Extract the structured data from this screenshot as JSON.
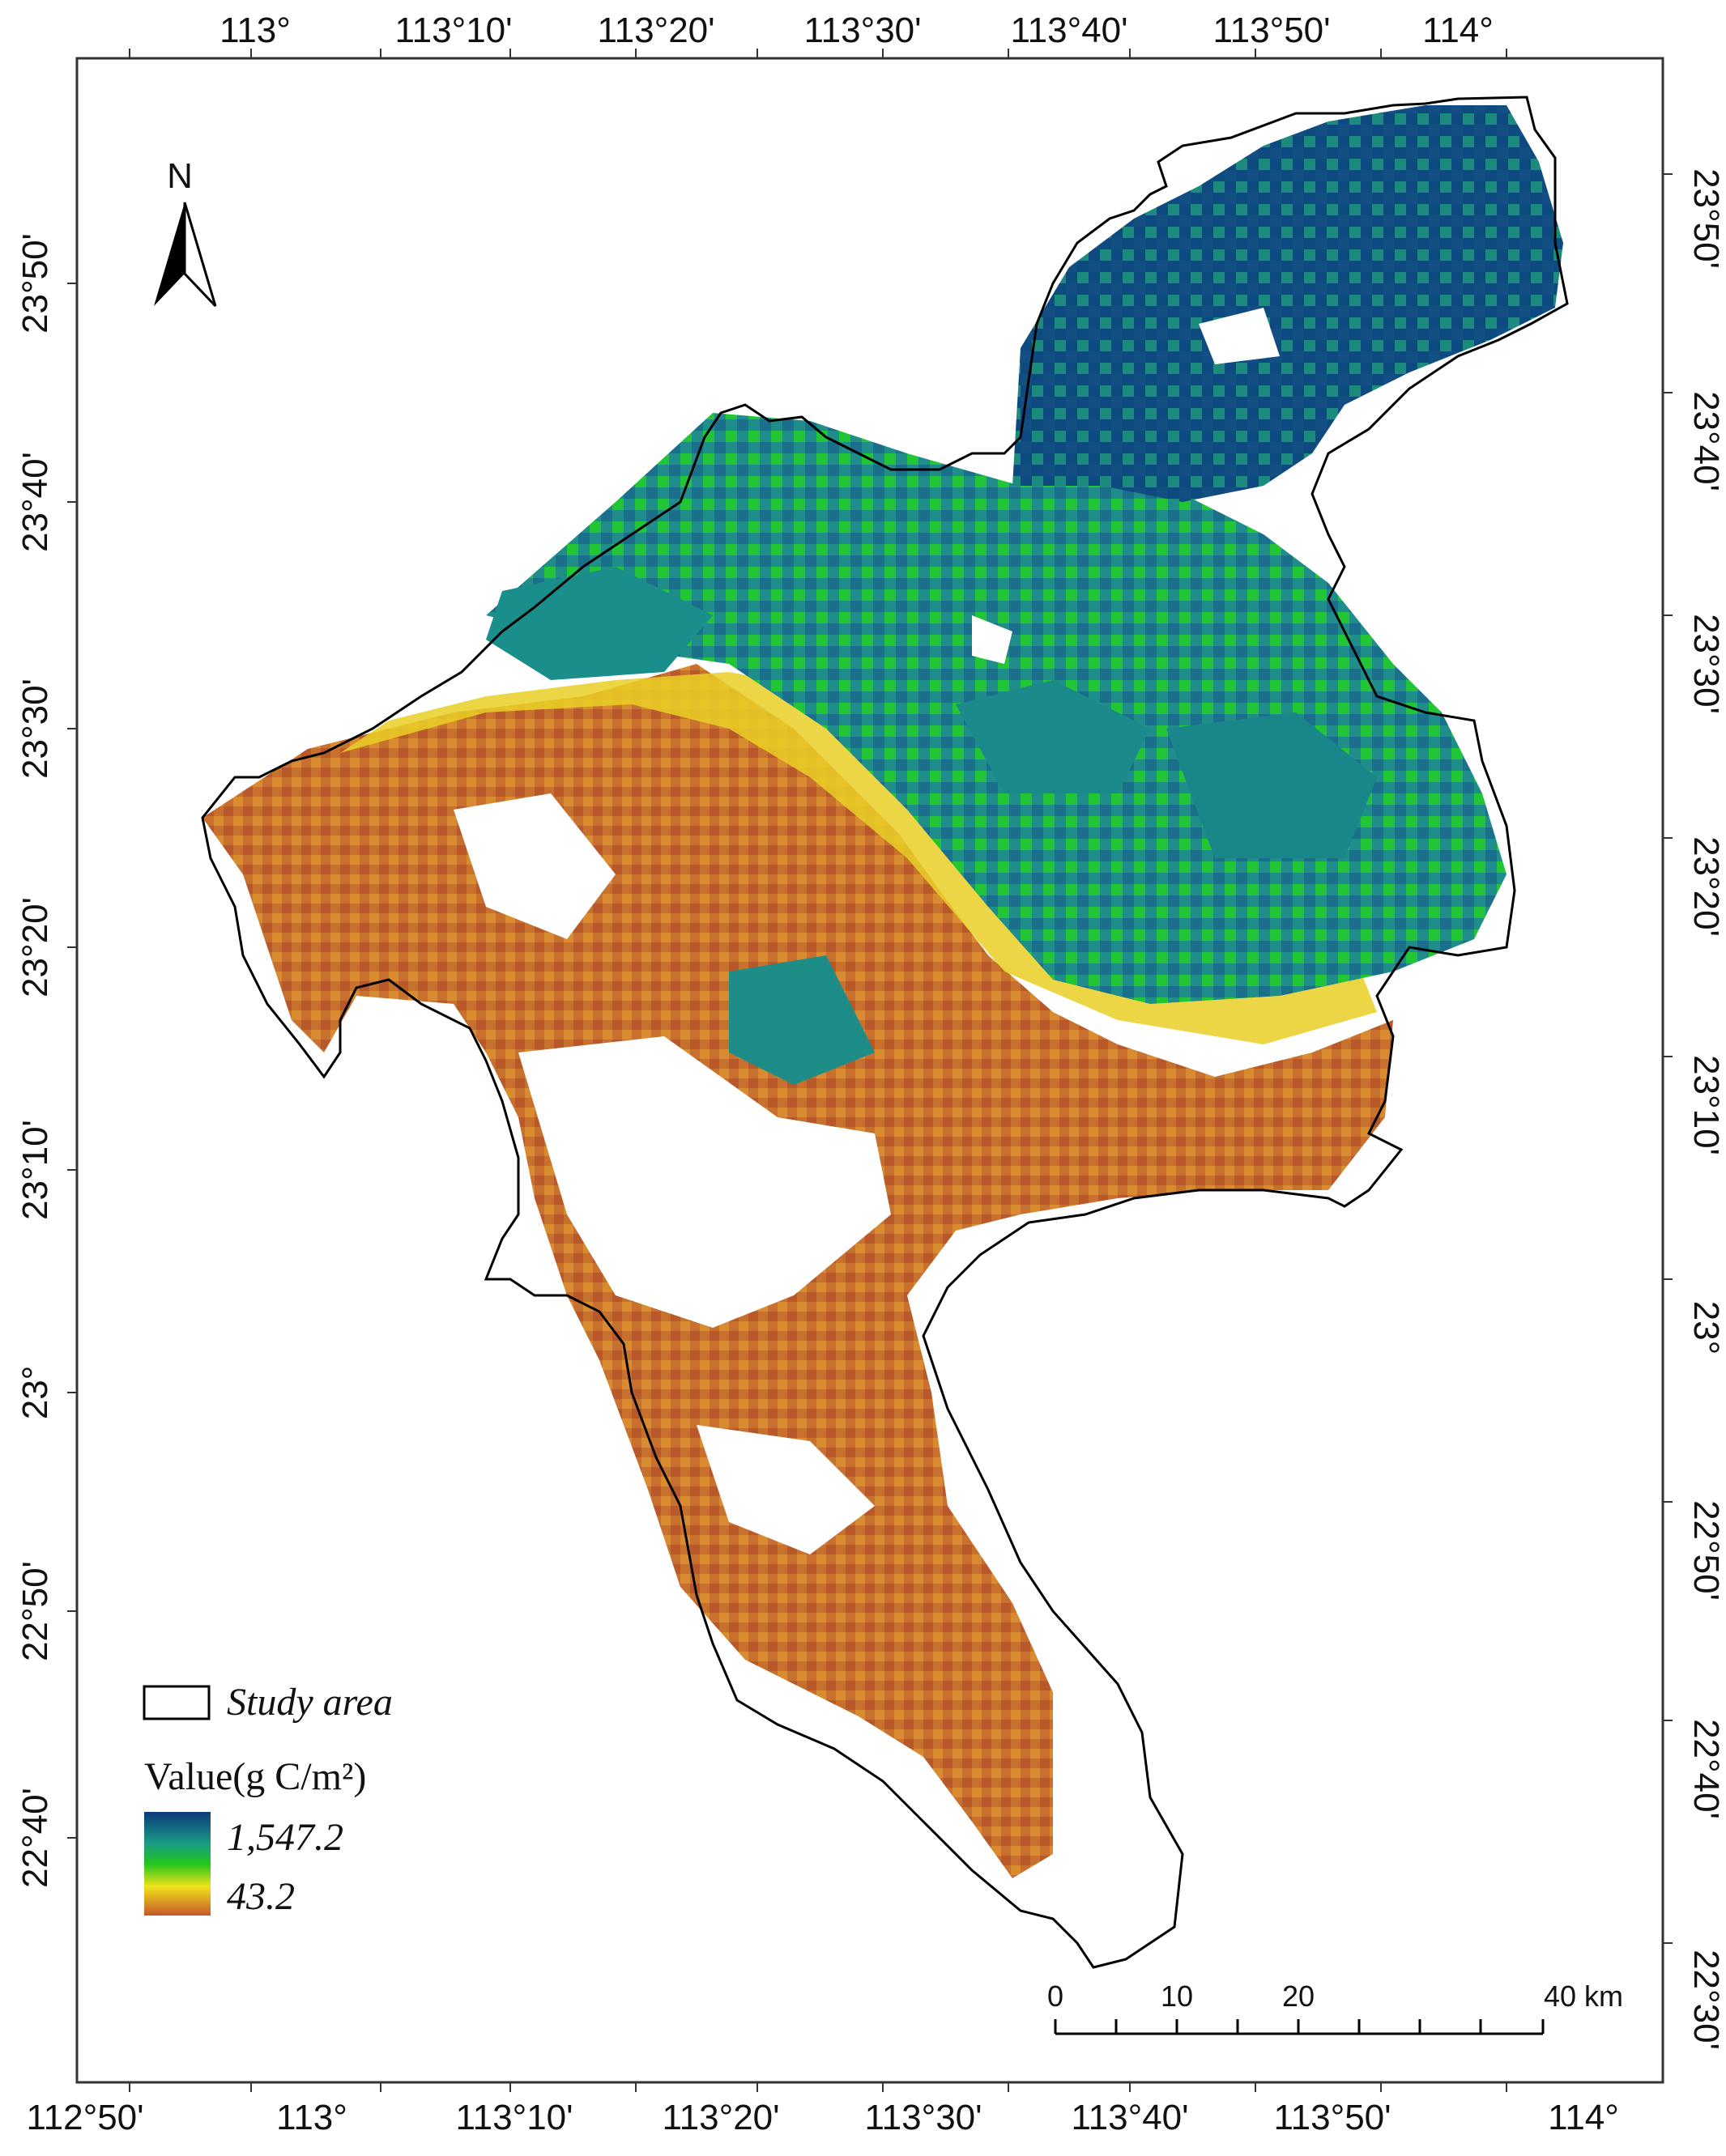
{
  "map": {
    "top_axis_labels": [
      "113°",
      "113°10'",
      "113°20'",
      "113°30'",
      "113°40'",
      "113°50'",
      "114°"
    ],
    "bottom_axis_labels": [
      "112°50'",
      "113°",
      "113°10'",
      "113°20'",
      "113°30'",
      "113°40'",
      "113°50'",
      "114°"
    ],
    "left_axis_labels": [
      "23°50'",
      "23°40'",
      "23°30'",
      "23°20'",
      "23°10'",
      "23°",
      "22°50'",
      "22°40'"
    ],
    "right_axis_labels": [
      "23°50'",
      "23°40'",
      "23°30'",
      "23°20'",
      "23°10'",
      "23°",
      "22°50'",
      "22°40'",
      "22°30'"
    ],
    "north_arrow": {
      "label": "N",
      "icon": "north-arrow-icon"
    },
    "legend": {
      "study_area_label": "Study area",
      "value_title": "Value(g C/m²)",
      "max_label": "1,547.2",
      "min_label": "43.2",
      "colors": {
        "high": "#0b3a78",
        "mid_high": "#1a9a86",
        "mid": "#22c51e",
        "mid_low": "#f0e21a",
        "low": "#c5582a"
      }
    },
    "scale_bar": {
      "labels": [
        "0",
        "10",
        "20",
        "40 km"
      ]
    }
  }
}
